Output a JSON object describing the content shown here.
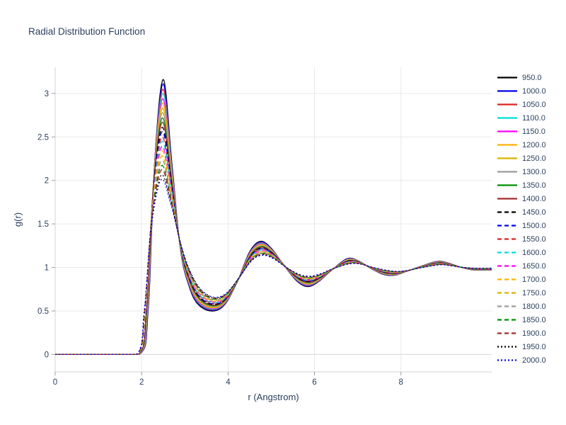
{
  "chart_data": {
    "type": "line",
    "title": "Radial Distribution Function",
    "xlabel": "r (Angstrom)",
    "ylabel": "g(r)",
    "xlim": [
      0,
      10.1
    ],
    "ylim": [
      -0.2,
      3.3
    ],
    "x_ticks": [
      0,
      2,
      4,
      6,
      8
    ],
    "y_ticks": [
      0,
      0.5,
      1,
      1.5,
      2,
      2.5,
      3
    ],
    "grid": true,
    "legend_position": "right",
    "colors": {
      "text": "#2a3f5f",
      "grid": "#e9e9e9",
      "zeroline": "#d5d5d5",
      "tick": "#9aa0a6",
      "background": "#ffffff"
    },
    "series": [
      {
        "name": "950.0",
        "color": "#000000",
        "dash": "solid",
        "first_peak": 3.16
      },
      {
        "name": "1000.0",
        "color": "#0000ee",
        "dash": "solid",
        "first_peak": 3.11
      },
      {
        "name": "1050.0",
        "color": "#dd2222",
        "dash": "solid",
        "first_peak": 3.05
      },
      {
        "name": "1100.0",
        "color": "#00dddd",
        "dash": "solid",
        "first_peak": 3.0
      },
      {
        "name": "1150.0",
        "color": "#ff00ff",
        "dash": "solid",
        "first_peak": 2.94
      },
      {
        "name": "1200.0",
        "color": "#ffb300",
        "dash": "solid",
        "first_peak": 2.89
      },
      {
        "name": "1250.0",
        "color": "#d8b400",
        "dash": "solid",
        "first_peak": 2.83
      },
      {
        "name": "1300.0",
        "color": "#9a9a9a",
        "dash": "solid",
        "first_peak": 2.78
      },
      {
        "name": "1350.0",
        "color": "#008f00",
        "dash": "solid",
        "first_peak": 2.72
      },
      {
        "name": "1400.0",
        "color": "#a52a2a",
        "dash": "solid",
        "first_peak": 2.67
      },
      {
        "name": "1450.0",
        "color": "#000000",
        "dash": "dash",
        "first_peak": 2.61
      },
      {
        "name": "1500.0",
        "color": "#0000ee",
        "dash": "dash",
        "first_peak": 2.56
      },
      {
        "name": "1550.0",
        "color": "#dd2222",
        "dash": "dash",
        "first_peak": 2.5
      },
      {
        "name": "1600.0",
        "color": "#00dddd",
        "dash": "dash",
        "first_peak": 2.45
      },
      {
        "name": "1650.0",
        "color": "#ff00ff",
        "dash": "dash",
        "first_peak": 2.39
      },
      {
        "name": "1700.0",
        "color": "#ffb300",
        "dash": "dash",
        "first_peak": 2.34
      },
      {
        "name": "1750.0",
        "color": "#d8b400",
        "dash": "dash",
        "first_peak": 2.28
      },
      {
        "name": "1800.0",
        "color": "#9a9a9a",
        "dash": "dash",
        "first_peak": 2.23
      },
      {
        "name": "1850.0",
        "color": "#008f00",
        "dash": "dash",
        "first_peak": 2.17
      },
      {
        "name": "1900.0",
        "color": "#a52a2a",
        "dash": "dash",
        "first_peak": 2.12
      },
      {
        "name": "1950.0",
        "color": "#000000",
        "dash": "dot",
        "first_peak": 2.06
      },
      {
        "name": "2000.0",
        "color": "#0000ee",
        "dash": "dot",
        "first_peak": 2.01
      }
    ],
    "shape_cold": [
      [
        0,
        0
      ],
      [
        1.0,
        0
      ],
      [
        1.95,
        0
      ],
      [
        2.15,
        0.5
      ],
      [
        2.3,
        2.2
      ],
      [
        2.5,
        3.16
      ],
      [
        2.7,
        2.2
      ],
      [
        2.9,
        1.2
      ],
      [
        3.1,
        0.78
      ],
      [
        3.3,
        0.58
      ],
      [
        3.6,
        0.5
      ],
      [
        3.9,
        0.56
      ],
      [
        4.2,
        0.82
      ],
      [
        4.5,
        1.18
      ],
      [
        4.75,
        1.3
      ],
      [
        5.0,
        1.22
      ],
      [
        5.3,
        1.02
      ],
      [
        5.6,
        0.84
      ],
      [
        5.85,
        0.78
      ],
      [
        6.1,
        0.84
      ],
      [
        6.4,
        0.97
      ],
      [
        6.75,
        1.1
      ],
      [
        7.0,
        1.08
      ],
      [
        7.3,
        0.99
      ],
      [
        7.6,
        0.92
      ],
      [
        7.85,
        0.91
      ],
      [
        8.1,
        0.95
      ],
      [
        8.5,
        1.02
      ],
      [
        8.85,
        1.07
      ],
      [
        9.1,
        1.05
      ],
      [
        9.4,
        1.0
      ],
      [
        9.7,
        0.97
      ],
      [
        10.1,
        0.97
      ]
    ],
    "shape_hot": [
      [
        0,
        0
      ],
      [
        1.0,
        0
      ],
      [
        1.88,
        0
      ],
      [
        2.06,
        0.5
      ],
      [
        2.22,
        1.45
      ],
      [
        2.45,
        2.01
      ],
      [
        2.68,
        1.72
      ],
      [
        2.9,
        1.28
      ],
      [
        3.1,
        0.98
      ],
      [
        3.35,
        0.76
      ],
      [
        3.65,
        0.66
      ],
      [
        3.95,
        0.7
      ],
      [
        4.25,
        0.88
      ],
      [
        4.55,
        1.08
      ],
      [
        4.8,
        1.14
      ],
      [
        5.05,
        1.1
      ],
      [
        5.35,
        1.0
      ],
      [
        5.65,
        0.92
      ],
      [
        5.9,
        0.9
      ],
      [
        6.15,
        0.93
      ],
      [
        6.45,
        0.99
      ],
      [
        6.8,
        1.04
      ],
      [
        7.05,
        1.04
      ],
      [
        7.35,
        1.0
      ],
      [
        7.65,
        0.97
      ],
      [
        7.9,
        0.955
      ],
      [
        8.15,
        0.965
      ],
      [
        8.5,
        1.0
      ],
      [
        8.9,
        1.03
      ],
      [
        9.15,
        1.02
      ],
      [
        9.45,
        1.0
      ],
      [
        9.75,
        0.99
      ],
      [
        10.1,
        0.99
      ]
    ]
  }
}
